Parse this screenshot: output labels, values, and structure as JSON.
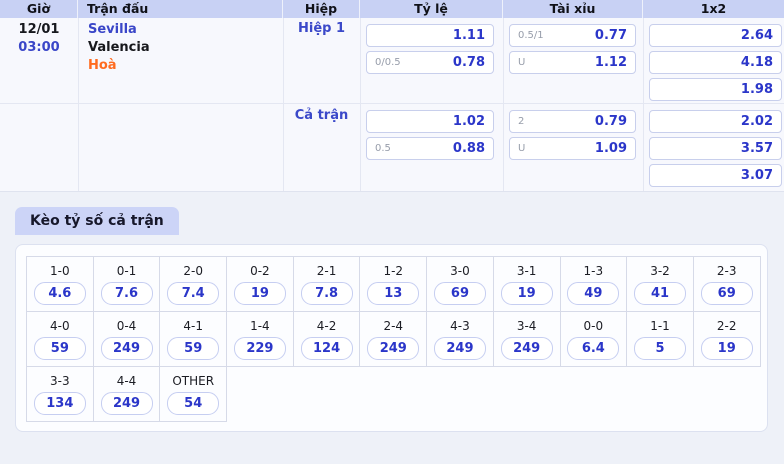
{
  "table": {
    "headers": [
      "Giờ",
      "Trận đấu",
      "Hiệp",
      "Tỷ lệ",
      "Tài xỉu",
      "1x2"
    ],
    "match": {
      "date": "12/01",
      "time": "03:00",
      "home": "Sevilla",
      "away": "Valencia",
      "result": "Hoà"
    },
    "sections": [
      {
        "label": "Hiệp 1",
        "ty_le": [
          {
            "hdp": "",
            "odds": "1.11"
          },
          {
            "hdp": "0/0.5",
            "odds": "0.78"
          }
        ],
        "tai_xiu": [
          {
            "hdp": "0.5/1",
            "odds": "0.77"
          },
          {
            "hdp": "U",
            "odds": "1.12"
          }
        ],
        "one_x_two": [
          "2.64",
          "4.18",
          "1.98"
        ]
      },
      {
        "label": "Cả trận",
        "ty_le": [
          {
            "hdp": "",
            "odds": "1.02"
          },
          {
            "hdp": "0.5",
            "odds": "0.88"
          }
        ],
        "tai_xiu": [
          {
            "hdp": "2",
            "odds": "0.79"
          },
          {
            "hdp": "U",
            "odds": "1.09"
          }
        ],
        "one_x_two": [
          "2.02",
          "3.57",
          "3.07"
        ]
      }
    ]
  },
  "score_tab": {
    "label": "Kèo tỷ số cả trận"
  },
  "score_grid": {
    "rows": [
      [
        {
          "score": "1-0",
          "odds": "4.6"
        },
        {
          "score": "0-1",
          "odds": "7.6"
        },
        {
          "score": "2-0",
          "odds": "7.4"
        },
        {
          "score": "0-2",
          "odds": "19"
        },
        {
          "score": "2-1",
          "odds": "7.8"
        },
        {
          "score": "1-2",
          "odds": "13"
        },
        {
          "score": "3-0",
          "odds": "69"
        },
        {
          "score": "3-1",
          "odds": "19"
        },
        {
          "score": "1-3",
          "odds": "49"
        },
        {
          "score": "3-2",
          "odds": "41"
        },
        {
          "score": "2-3",
          "odds": "69"
        }
      ],
      [
        {
          "score": "4-0",
          "odds": "59"
        },
        {
          "score": "0-4",
          "odds": "249"
        },
        {
          "score": "4-1",
          "odds": "59"
        },
        {
          "score": "1-4",
          "odds": "229"
        },
        {
          "score": "4-2",
          "odds": "124"
        },
        {
          "score": "2-4",
          "odds": "249"
        },
        {
          "score": "4-3",
          "odds": "249"
        },
        {
          "score": "3-4",
          "odds": "249"
        },
        {
          "score": "0-0",
          "odds": "6.4"
        },
        {
          "score": "1-1",
          "odds": "5"
        },
        {
          "score": "2-2",
          "odds": "19"
        }
      ],
      [
        {
          "score": "3-3",
          "odds": "134"
        },
        {
          "score": "4-4",
          "odds": "249"
        },
        {
          "score": "OTHER",
          "odds": "54"
        }
      ]
    ]
  },
  "colors": {
    "header_bg": "#c8d1f4",
    "page_bg": "#eef1f8",
    "odds_blue": "#2b36c9",
    "link_blue": "#3a46c8",
    "draw_orange": "#ff6b1f",
    "tab_bg": "#ccd4f7"
  }
}
